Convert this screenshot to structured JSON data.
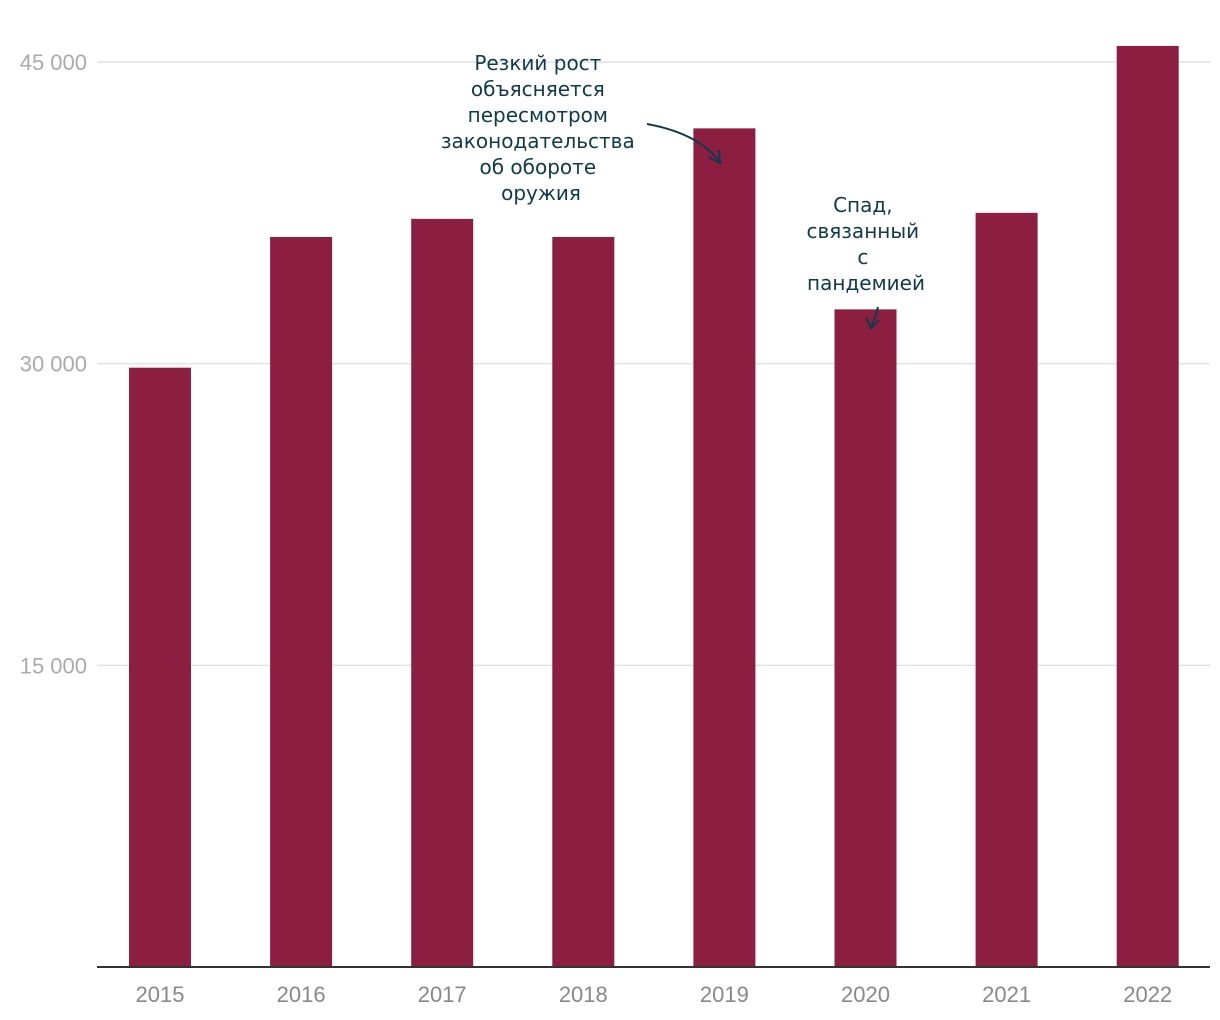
{
  "chart_data": {
    "type": "bar",
    "title": "",
    "xlabel": "",
    "ylabel": "",
    "categories": [
      "2015",
      "2016",
      "2017",
      "2018",
      "2019",
      "2020",
      "2021",
      "2022"
    ],
    "values": [
      29800,
      36300,
      37200,
      36300,
      41700,
      32700,
      37500,
      45800
    ],
    "ylim": [
      0,
      45000
    ],
    "yticks": [
      15000,
      30000,
      45000
    ],
    "ytick_labels": [
      "15 000",
      "30 000",
      "45 000"
    ],
    "bar_color": "#8b1e41",
    "grid": true,
    "annotations": [
      {
        "category": "2019",
        "lines": [
          "Резкий рост",
          "объясняется",
          "пересмотром",
          "законодательства",
          "об обороте",
          "оружия"
        ]
      },
      {
        "category": "2020",
        "lines": [
          "Спад,",
          "связанный",
          "с",
          "пандемией"
        ]
      }
    ]
  }
}
